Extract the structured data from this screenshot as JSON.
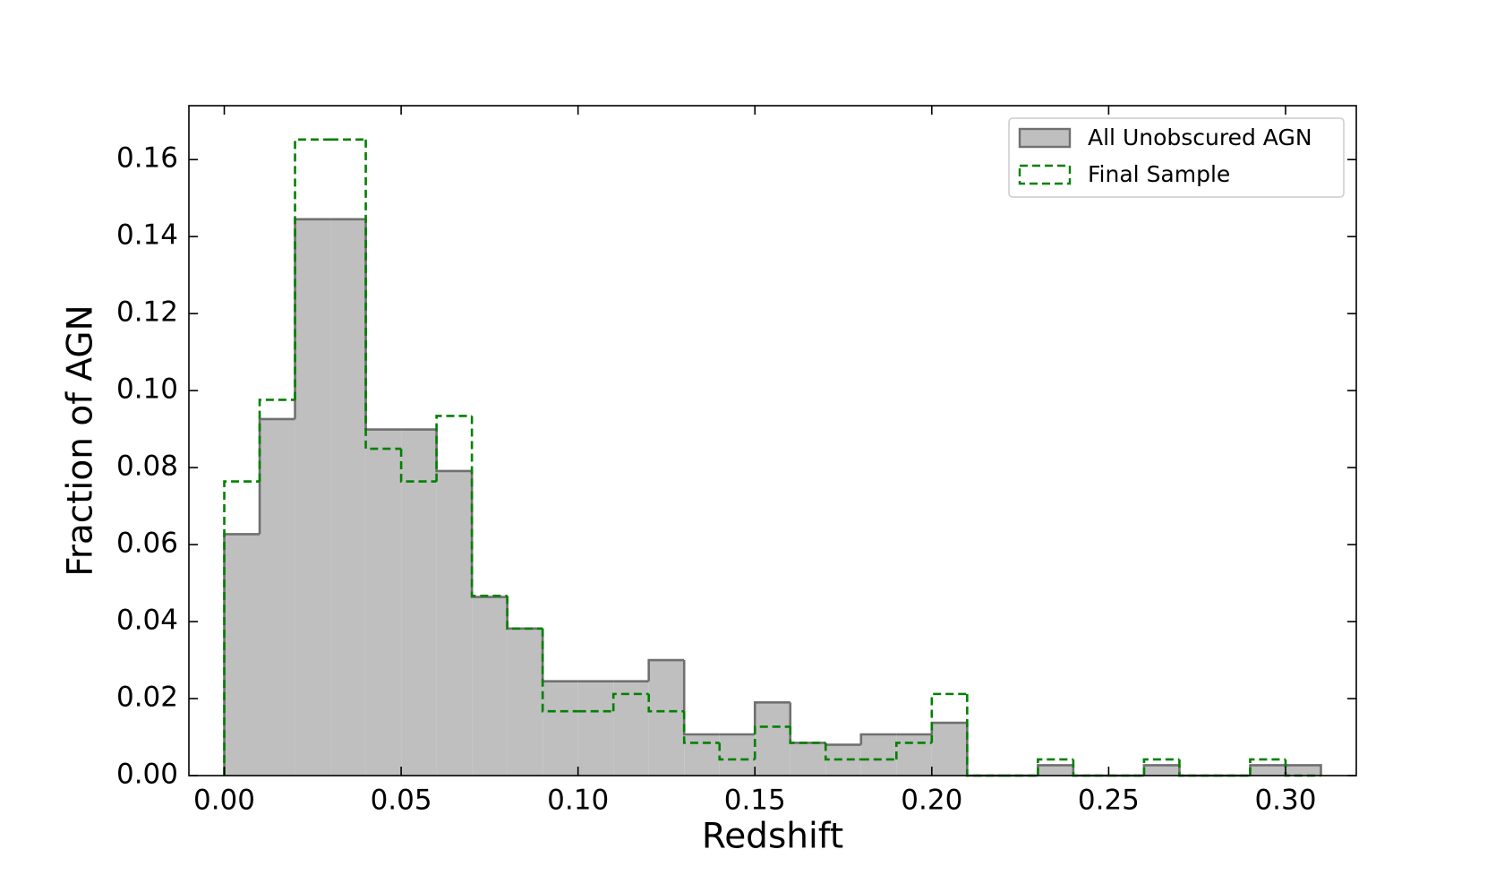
{
  "chart_data": {
    "type": "histogram",
    "xlabel": "Redshift",
    "ylabel": "Fraction of AGN",
    "bins": [
      0,
      0.01,
      0.02,
      0.03,
      0.04,
      0.05,
      0.06,
      0.07,
      0.08,
      0.09,
      0.1,
      0.11,
      0.12,
      0.13,
      0.14,
      0.15,
      0.16,
      0.17,
      0.18,
      0.19,
      0.2,
      0.21,
      0.22,
      0.23,
      0.24,
      0.25,
      0.26,
      0.27,
      0.28,
      0.29,
      0.3,
      0.31
    ],
    "series": [
      {
        "name": "All Unobscured AGN",
        "color": "#bfbfbf",
        "edgecolor": "#707070",
        "values": [
          0.0627,
          0.0926,
          0.1445,
          0.1445,
          0.0899,
          0.0899,
          0.0791,
          0.0464,
          0.0382,
          0.0245,
          0.0245,
          0.0245,
          0.03,
          0.0107,
          0.0107,
          0.019,
          0.0085,
          0.008,
          0.0107,
          0.0107,
          0.0137,
          0,
          0,
          0.0027,
          0,
          0,
          0.0027,
          0,
          0,
          0.0027,
          0.0027
        ]
      },
      {
        "name": "Final Sample",
        "color": "#008000",
        "linestyle": "dashed",
        "values": [
          0.0764,
          0.0976,
          0.1652,
          0.1652,
          0.0849,
          0.0764,
          0.0934,
          0.0467,
          0.0382,
          0.0167,
          0.0167,
          0.0212,
          0.0167,
          0.0085,
          0.0042,
          0.0127,
          0.0085,
          0.0042,
          0.0042,
          0.0085,
          0.0212,
          0,
          0,
          0.0042,
          0,
          0,
          0.0042,
          0,
          0,
          0.0042,
          0
        ]
      }
    ],
    "xlim": [
      -0.01,
      0.32
    ],
    "ylim": [
      0,
      0.174
    ],
    "xticks": [
      {
        "value": 0,
        "label": "0.00"
      },
      {
        "value": 0.05,
        "label": "0.05"
      },
      {
        "value": 0.1,
        "label": "0.10"
      },
      {
        "value": 0.15,
        "label": "0.15"
      },
      {
        "value": 0.2,
        "label": "0.20"
      },
      {
        "value": 0.25,
        "label": "0.25"
      },
      {
        "value": 0.3,
        "label": "0.30"
      }
    ],
    "yticks": [
      {
        "value": 0,
        "label": "0.00"
      },
      {
        "value": 0.02,
        "label": "0.02"
      },
      {
        "value": 0.04,
        "label": "0.04"
      },
      {
        "value": 0.06,
        "label": "0.06"
      },
      {
        "value": 0.08,
        "label": "0.08"
      },
      {
        "value": 0.1,
        "label": "0.10"
      },
      {
        "value": 0.12,
        "label": "0.12"
      },
      {
        "value": 0.14,
        "label": "0.14"
      },
      {
        "value": 0.16,
        "label": "0.16"
      }
    ],
    "legend": "upper right"
  }
}
